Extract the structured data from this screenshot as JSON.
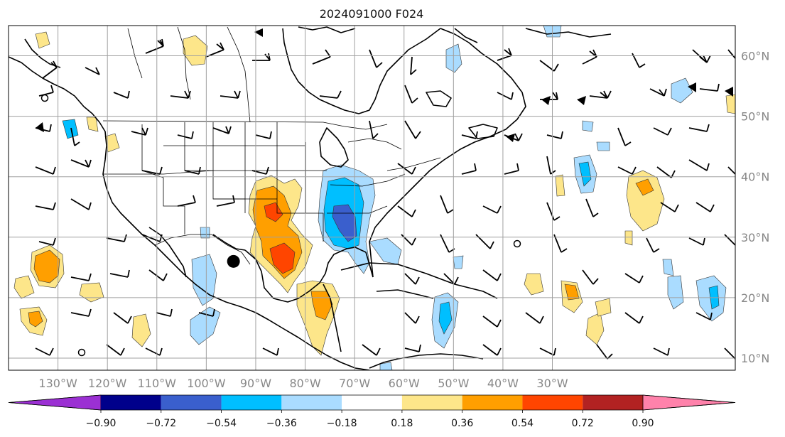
{
  "title": "2024091000 F024",
  "map": {
    "projection": "PlateCarree",
    "lon_range": [
      -140,
      7
    ],
    "lat_range": [
      8,
      65
    ],
    "lon_ticks": [
      {
        "lon": -130,
        "label": "130°W"
      },
      {
        "lon": -120,
        "label": "120°W"
      },
      {
        "lon": -110,
        "label": "110°W"
      },
      {
        "lon": -100,
        "label": "100°W"
      },
      {
        "lon": -90,
        "label": "90°W"
      },
      {
        "lon": -80,
        "label": "80°W"
      },
      {
        "lon": -70,
        "label": "70°W"
      },
      {
        "lon": -60,
        "label": "60°W"
      },
      {
        "lon": -50,
        "label": "50°W"
      },
      {
        "lon": -40,
        "label": "40°W"
      },
      {
        "lon": -30,
        "label": "30°W"
      }
    ],
    "lat_ticks": [
      {
        "lat": 60,
        "label": "60°N"
      },
      {
        "lat": 50,
        "label": "50°N"
      },
      {
        "lat": 40,
        "label": "40°N"
      },
      {
        "lat": 30,
        "label": "30°N"
      },
      {
        "lat": 20,
        "label": "20°N"
      },
      {
        "lat": 10,
        "label": "10°N"
      }
    ],
    "storm_marker": {
      "lon": -94.5,
      "lat": 26.0,
      "color": "#000000"
    }
  },
  "colorbar": {
    "colors": [
      "#9b30d3",
      "#00008b",
      "#3a5fcd",
      "#00bfff",
      "#aadcff",
      "#ffffff",
      "#fde68a",
      "#ff9f00",
      "#ff4500",
      "#b22222",
      "#ff82ab"
    ],
    "labels": [
      "−0.90",
      "−0.72",
      "−0.54",
      "−0.36",
      "−0.18",
      "0.18",
      "0.36",
      "0.54",
      "0.72",
      "0.90"
    ],
    "extend": "both"
  }
}
